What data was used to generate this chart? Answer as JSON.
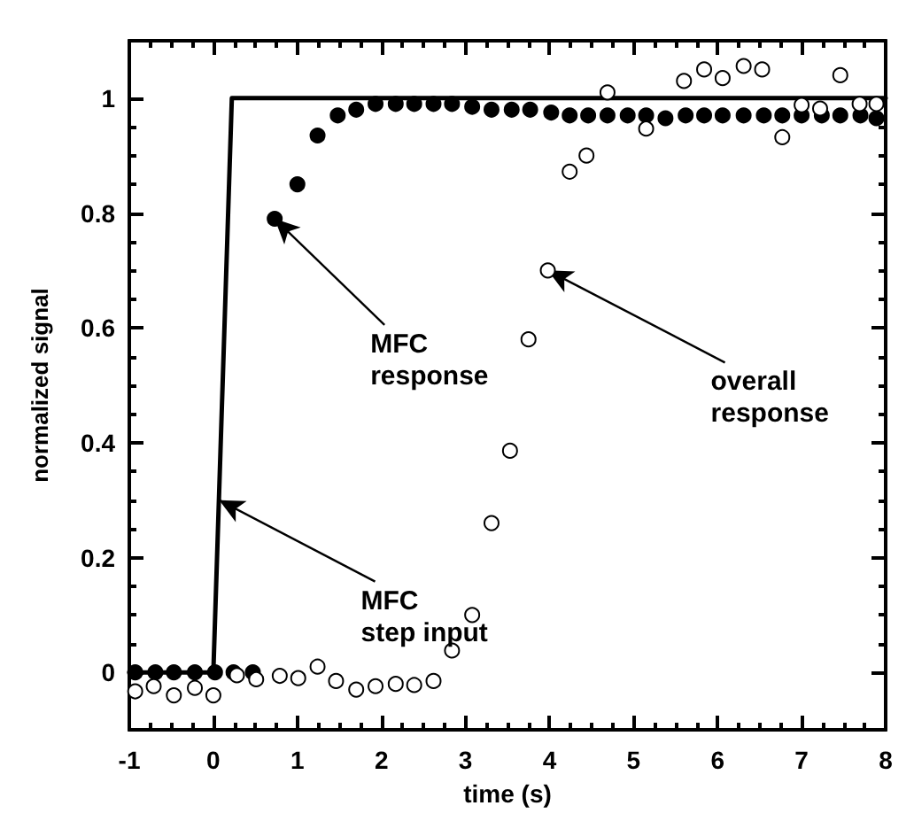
{
  "chart_data": {
    "type": "scatter",
    "xlabel": "time (s)",
    "ylabel": "normalized signal",
    "xlim": [
      -1,
      8
    ],
    "ylim": [
      -0.1,
      1.1
    ],
    "xticks": [
      -1,
      0,
      1,
      2,
      3,
      4,
      5,
      6,
      7,
      8
    ],
    "yticks": [
      0,
      0.2,
      0.4,
      0.6,
      0.8,
      1
    ],
    "series": [
      {
        "type": "line",
        "marker": "none",
        "line_style": "solid",
        "color": "#000000",
        "x": [
          -1,
          0,
          0.22,
          8
        ],
        "values": [
          0,
          0,
          1,
          1
        ]
      },
      {
        "marker": "circle",
        "color": "#000000",
        "x": [
          -0.93,
          -0.69,
          -0.47,
          -0.22,
          0.02,
          0.24,
          0.47,
          0.73,
          1.0,
          1.24,
          1.48,
          1.7,
          1.93,
          2.17,
          2.39,
          2.62,
          2.84,
          3.08,
          3.31,
          3.55,
          3.77,
          4.02,
          4.24,
          4.46,
          4.69,
          4.93,
          5.15,
          5.38,
          5.62,
          5.84,
          6.06,
          6.31,
          6.55,
          6.77,
          7.0,
          7.24,
          7.46,
          7.7,
          7.89
        ],
        "values": [
          0,
          0,
          0,
          0,
          0,
          0,
          0,
          0.79,
          0.85,
          0.935,
          0.97,
          0.98,
          0.99,
          0.99,
          0.99,
          0.99,
          0.99,
          0.985,
          0.98,
          0.98,
          0.98,
          0.975,
          0.97,
          0.97,
          0.97,
          0.97,
          0.97,
          0.965,
          0.97,
          0.97,
          0.97,
          0.97,
          0.97,
          0.97,
          0.97,
          0.97,
          0.97,
          0.97,
          0.965
        ]
      },
      {
        "marker": "circle",
        "color": "#ffffff",
        "x": [
          -0.93,
          -0.71,
          -0.47,
          -0.22,
          0.0,
          0.28,
          0.51,
          0.79,
          1.01,
          1.24,
          1.46,
          1.7,
          1.93,
          2.17,
          2.39,
          2.62,
          2.84,
          3.08,
          3.31,
          3.53,
          3.75,
          3.98,
          4.24,
          4.44,
          4.69,
          5.15,
          5.6,
          5.84,
          6.06,
          6.31,
          6.53,
          6.77,
          7.0,
          7.22,
          7.46,
          7.69,
          7.89
        ],
        "values": [
          -0.033,
          -0.024,
          -0.04,
          -0.027,
          -0.04,
          -0.005,
          -0.012,
          -0.006,
          -0.01,
          0.01,
          -0.015,
          -0.03,
          -0.024,
          -0.02,
          -0.022,
          -0.015,
          0.038,
          0.1,
          0.26,
          0.386,
          0.58,
          0.7,
          0.872,
          0.9,
          1.01,
          0.947,
          1.03,
          1.05,
          1.035,
          1.056,
          1.05,
          0.932,
          0.988,
          0.982,
          1.04,
          0.99,
          0.99
        ]
      }
    ],
    "annotations": [
      {
        "text": "MFC\nresponse",
        "x": 0.73,
        "y": 0.79
      },
      {
        "text": "MFC\nstep input",
        "x": 0.07,
        "y": 0.3
      },
      {
        "text": "overall\nresponse",
        "x": 3.98,
        "y": 0.7
      }
    ]
  }
}
